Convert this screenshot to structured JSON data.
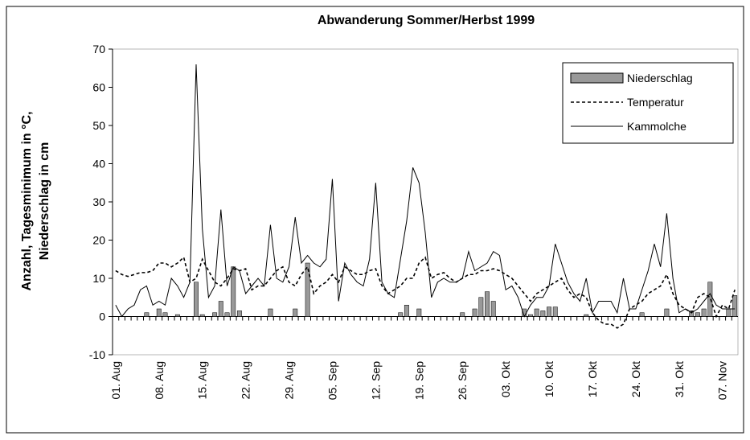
{
  "chart_data": {
    "type": "combo",
    "title": "Abwanderung Sommer/Herbst 1999",
    "ylabel": [
      "Anzahl, Tagesminimum in °C,",
      "Niederschlag in cm"
    ],
    "categories": [
      "01. Aug",
      null,
      null,
      null,
      null,
      null,
      null,
      "08. Aug",
      null,
      null,
      null,
      null,
      null,
      null,
      "15. Aug",
      null,
      null,
      null,
      null,
      null,
      null,
      "22. Aug",
      null,
      null,
      null,
      null,
      null,
      null,
      "29. Aug",
      null,
      null,
      null,
      null,
      null,
      null,
      "05. Sep",
      null,
      null,
      null,
      null,
      null,
      null,
      "12. Sep",
      null,
      null,
      null,
      null,
      null,
      null,
      "19. Sep",
      null,
      null,
      null,
      null,
      null,
      null,
      "26. Sep",
      null,
      null,
      null,
      null,
      null,
      null,
      "03. Okt",
      null,
      null,
      null,
      null,
      null,
      null,
      "10. Okt",
      null,
      null,
      null,
      null,
      null,
      null,
      "17. Okt",
      null,
      null,
      null,
      null,
      null,
      null,
      "24. Okt",
      null,
      null,
      null,
      null,
      null,
      null,
      "31. Okt",
      null,
      null,
      null,
      null,
      null,
      null,
      "07. Nov",
      null,
      null
    ],
    "series": [
      {
        "name": "Niederschlag",
        "kind": "bar",
        "color": "#999999",
        "values": [
          0,
          0,
          0,
          0,
          0,
          1,
          0,
          2,
          1,
          0,
          0.5,
          0,
          0,
          9,
          0.5,
          0,
          1,
          4,
          1,
          13,
          1.5,
          0,
          0,
          0,
          0,
          2,
          0,
          0,
          0,
          2,
          0,
          14,
          0,
          0,
          0,
          0,
          0,
          0,
          0,
          0,
          0,
          0,
          0,
          0,
          0,
          0,
          1,
          3,
          0,
          2,
          0,
          0,
          0,
          0,
          0,
          0,
          1,
          0,
          2,
          5,
          6.5,
          4,
          0,
          0,
          0,
          0,
          2,
          0.5,
          2,
          1.5,
          2.5,
          2.5,
          0,
          0,
          0,
          0,
          0.5,
          0,
          0,
          0,
          0,
          0,
          0,
          0,
          0,
          1,
          0,
          0,
          0,
          2,
          0,
          0,
          0,
          1.5,
          1,
          2,
          9,
          0,
          0,
          2,
          5.5
        ]
      },
      {
        "name": "Temperatur",
        "kind": "dashed",
        "color": "#000000",
        "values": [
          12,
          11,
          10.5,
          11,
          11.5,
          11.5,
          12,
          14,
          14,
          13,
          14,
          15.5,
          9,
          10,
          15,
          12,
          9,
          8,
          10,
          12.5,
          12,
          12.5,
          7,
          8,
          8,
          10,
          12,
          13,
          9,
          8,
          11,
          13,
          6,
          8,
          9,
          11,
          9,
          13,
          12,
          11,
          11,
          12,
          12.5,
          8,
          6,
          7,
          8,
          10,
          10,
          14,
          15.5,
          10,
          11,
          11.5,
          10,
          9,
          10,
          11,
          11,
          12,
          12,
          12.5,
          12,
          11,
          10,
          8,
          6,
          4,
          6,
          7,
          8,
          9,
          10,
          7,
          5,
          6,
          5,
          1,
          -1,
          -2,
          -2,
          -3,
          -2,
          2,
          3,
          4,
          6,
          7,
          8,
          11,
          6,
          3,
          2,
          1,
          5,
          6,
          5,
          0,
          3,
          2,
          7
        ]
      },
      {
        "name": "Kammolche",
        "kind": "line",
        "color": "#000000",
        "values": [
          3,
          0,
          2,
          3,
          7,
          8,
          3,
          4,
          3,
          10,
          8,
          5,
          9,
          66,
          23,
          5,
          8,
          28,
          8,
          13,
          12,
          6,
          8,
          10,
          8,
          24,
          10,
          9,
          13,
          26,
          14,
          16,
          14,
          13,
          15,
          36,
          4,
          14,
          11,
          9,
          8,
          15,
          35,
          9,
          6,
          5,
          15,
          25,
          39,
          35,
          22,
          5,
          9,
          10,
          9,
          9,
          10,
          17,
          12,
          13,
          14,
          17,
          16,
          7,
          8,
          5,
          0,
          3,
          5,
          5,
          8,
          19,
          14,
          9,
          6,
          4,
          10,
          1,
          4,
          4,
          4,
          1,
          10,
          2,
          2,
          7,
          12,
          19,
          13,
          27,
          10,
          1,
          2,
          1,
          2,
          4,
          6,
          3,
          2,
          2,
          2
        ]
      }
    ],
    "ylim": [
      -10,
      70
    ],
    "yticks": [
      -10,
      0,
      10,
      20,
      30,
      40,
      50,
      60,
      70
    ],
    "legend": "top-right"
  }
}
